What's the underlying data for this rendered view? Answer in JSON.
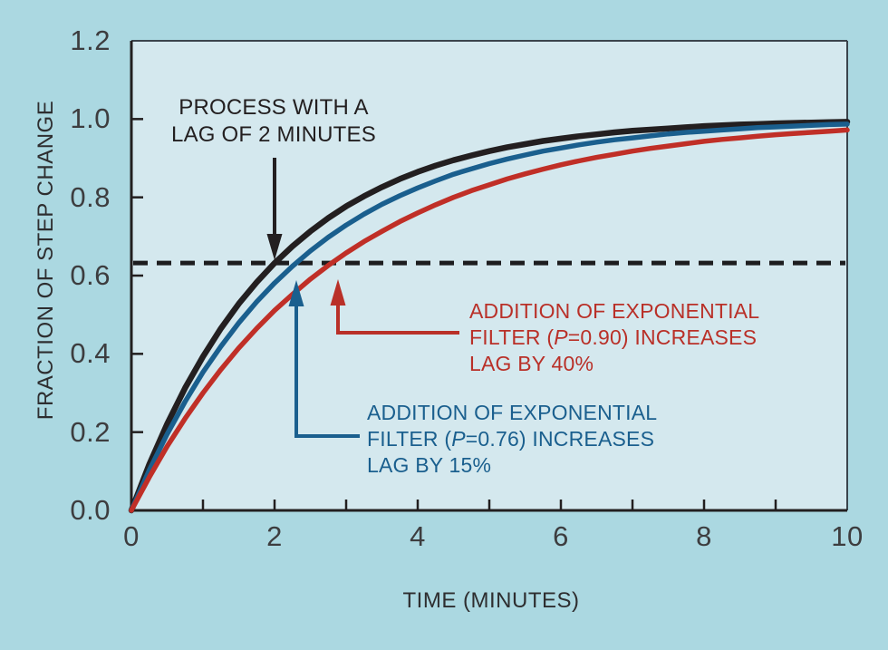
{
  "figure": {
    "background_color": "#abd8e1",
    "plot_background_color": "#d4e8ee",
    "frame_color": "#3a444c",
    "axis_color": "#231f20",
    "tick_label_color": "#3d3d3f"
  },
  "chart_data": {
    "type": "line",
    "title": "",
    "xlabel": "TIME (MINUTES)",
    "ylabel": "FRACTION OF STEP CHANGE",
    "xlim": [
      0,
      10
    ],
    "ylim": [
      0,
      1.2
    ],
    "grid": false,
    "legend": "none (curves identified by colored annotations)",
    "x_tick_values": [
      0,
      2,
      4,
      6,
      8,
      10
    ],
    "x_tick_labels": [
      "0",
      "2",
      "4",
      "6",
      "8",
      "10"
    ],
    "x_minor_tick_values": [
      1,
      2,
      3,
      4,
      5,
      6,
      7,
      8,
      9
    ],
    "y_tick_values": [
      1.2,
      1.0,
      0.8,
      0.6,
      0.4,
      0.2,
      0.0
    ],
    "y_tick_labels": [
      "1.2",
      "1.0",
      "0.8",
      "0.6",
      "0.4",
      "0.2",
      "0.0"
    ],
    "reference_line": {
      "y": 0.632,
      "style": "dashed",
      "color": "#1d1d1f",
      "meaning": "63.2% of step change (time-constant level)"
    },
    "x_start": 0,
    "x_step": 0.25,
    "series": [
      {
        "name": "process-lag-2min",
        "label": "PROCESS WITH A LAG OF 2 MINUTES",
        "color": "#231f20",
        "time_constant_minutes": 2.0,
        "values": [
          0.0,
          0.118,
          0.221,
          0.313,
          0.393,
          0.465,
          0.528,
          0.583,
          0.632,
          0.675,
          0.713,
          0.747,
          0.777,
          0.803,
          0.826,
          0.847,
          0.865,
          0.881,
          0.895,
          0.907,
          0.918,
          0.928,
          0.936,
          0.944,
          0.95,
          0.956,
          0.961,
          0.966,
          0.97,
          0.973,
          0.976,
          0.979,
          0.982,
          0.984,
          0.986,
          0.987,
          0.989,
          0.99,
          0.991,
          0.992,
          0.993
        ]
      },
      {
        "name": "filter-p-076",
        "label": "ADDITION OF EXPONENTIAL FILTER (P=0.76) INCREASES LAG BY 15%",
        "color": "#1a5f8e",
        "filter_P": 0.76,
        "lag_increase_pct": 15,
        "time_constant_minutes": 2.3,
        "values": [
          0.0,
          0.103,
          0.195,
          0.278,
          0.353,
          0.419,
          0.479,
          0.533,
          0.581,
          0.624,
          0.663,
          0.698,
          0.729,
          0.757,
          0.782,
          0.804,
          0.824,
          0.842,
          0.859,
          0.873,
          0.886,
          0.898,
          0.908,
          0.918,
          0.926,
          0.934,
          0.941,
          0.947,
          0.952,
          0.957,
          0.962,
          0.966,
          0.969,
          0.972,
          0.975,
          0.978,
          0.98,
          0.982,
          0.984,
          0.986,
          0.987
        ]
      },
      {
        "name": "filter-p-090",
        "label": "ADDITION OF EXPONENTIAL FILTER (P=0.90) INCREASES LAG BY 40%",
        "color": "#c02f27",
        "filter_P": 0.9,
        "lag_increase_pct": 40,
        "time_constant_minutes": 2.8,
        "values": [
          0.0,
          0.085,
          0.164,
          0.235,
          0.3,
          0.36,
          0.415,
          0.465,
          0.511,
          0.552,
          0.591,
          0.626,
          0.658,
          0.687,
          0.713,
          0.738,
          0.76,
          0.781,
          0.8,
          0.817,
          0.832,
          0.847,
          0.86,
          0.872,
          0.883,
          0.893,
          0.902,
          0.91,
          0.918,
          0.925,
          0.931,
          0.937,
          0.943,
          0.948,
          0.952,
          0.956,
          0.96,
          0.963,
          0.966,
          0.969,
          0.972
        ]
      }
    ]
  },
  "annotations": {
    "process": {
      "color": "#231f20",
      "line1": "PROCESS WITH A",
      "line2": "LAG OF 2 MINUTES",
      "arrow_points_to": {
        "t": 2.0,
        "y": 0.64
      }
    },
    "red_note": {
      "color": "#b93028",
      "line1": "ADDITION OF EXPONENTIAL",
      "line2_pre": "FILTER (",
      "line2_p": "P",
      "line2_post": "=0.90) INCREASES",
      "line3": "LAG BY 40%",
      "arrow_points_to": {
        "t": 2.88,
        "y": 0.59
      }
    },
    "blue_note": {
      "color": "#1a5f8e",
      "line1": "ADDITION OF EXPONENTIAL",
      "line2_pre": "FILTER (",
      "line2_p": "P",
      "line2_post": "=0.76) INCREASES",
      "line3": "LAG BY 15%",
      "arrow_points_to": {
        "t": 2.3,
        "y": 0.59
      }
    }
  }
}
